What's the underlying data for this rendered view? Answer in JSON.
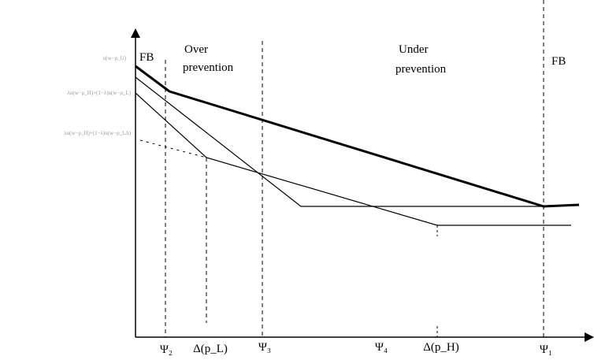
{
  "regions": {
    "fb_left": "FB",
    "over_line1": "Over",
    "over_line2": "prevention",
    "under_line1": "Under",
    "under_line2": "prevention",
    "fb_right": "FB"
  },
  "y_labels": {
    "top": "u(w−ρ_U)",
    "middle": "λu(w−ρ_H)+(1−λ)u(w−ρ_L)",
    "lower": "λu(w−ρ_H)+(1−λ)u(w−ρ_L∆)"
  },
  "x_ticks": {
    "psi2": "Ψ₂",
    "delta_pl": "Δ(p_L)",
    "psi3": "Ψ₃",
    "psi4": "Ψ₄",
    "delta_ph": "Δ(p_H)",
    "psi1": "Ψ₁"
  },
  "colors": {
    "axis": "#000000",
    "curve": "#000000",
    "y_label": "#9a9a9a"
  }
}
